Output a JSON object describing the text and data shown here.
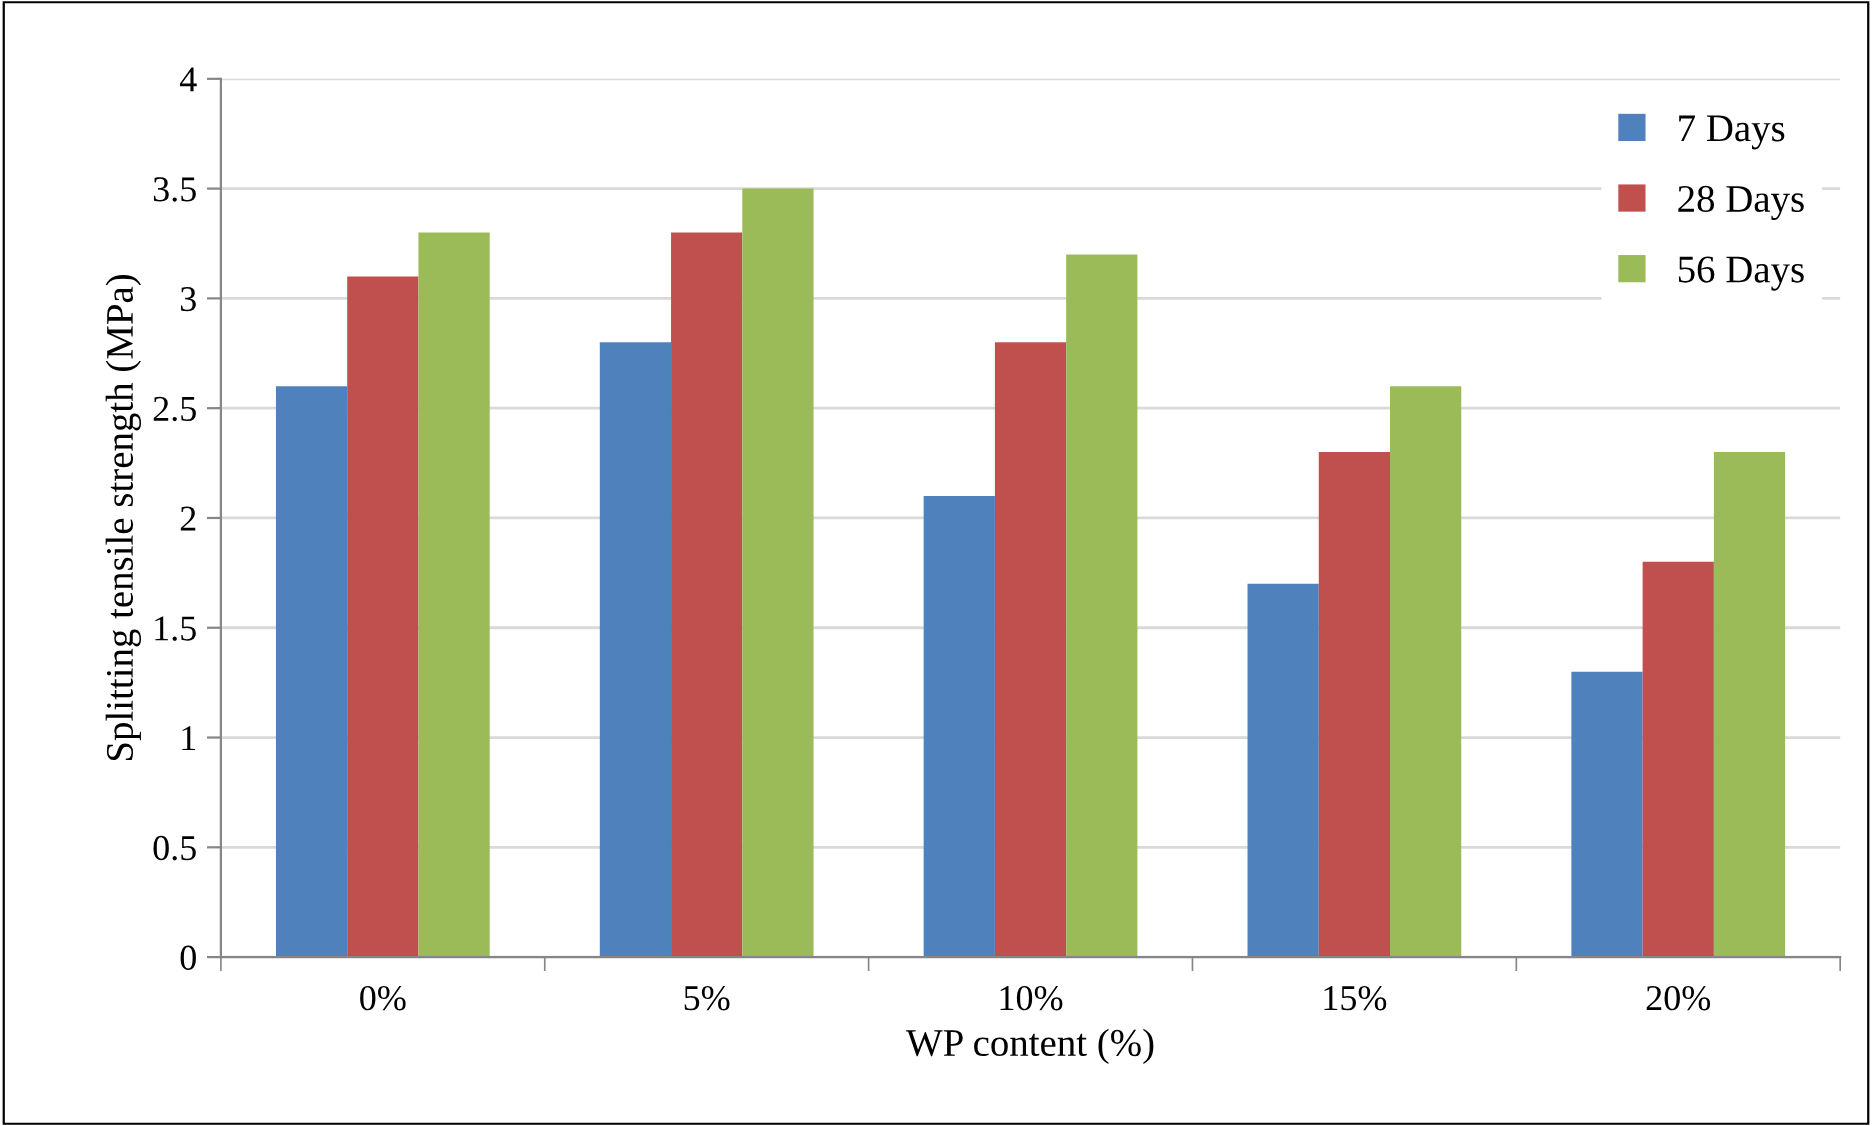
{
  "chart_data": {
    "type": "bar",
    "xlabel": "WP content (%)",
    "ylabel": "Splitting tensile strength (MPa)",
    "categories": [
      "0%",
      "5%",
      "10%",
      "15%",
      "20%"
    ],
    "series": [
      {
        "name": "7 Days",
        "color": "#4f81bd",
        "values": [
          2.6,
          2.8,
          2.1,
          1.7,
          1.3
        ]
      },
      {
        "name": "28 Days",
        "color": "#c0504d",
        "values": [
          3.1,
          3.3,
          2.8,
          2.3,
          1.8
        ]
      },
      {
        "name": "56 Days",
        "color": "#9bbb59",
        "values": [
          3.3,
          3.5,
          3.2,
          2.6,
          2.3
        ]
      }
    ],
    "ylim": [
      0,
      4
    ],
    "yticks": [
      0,
      0.5,
      1,
      1.5,
      2,
      2.5,
      3,
      3.5,
      4
    ],
    "grid": "y",
    "legend": "top right"
  }
}
